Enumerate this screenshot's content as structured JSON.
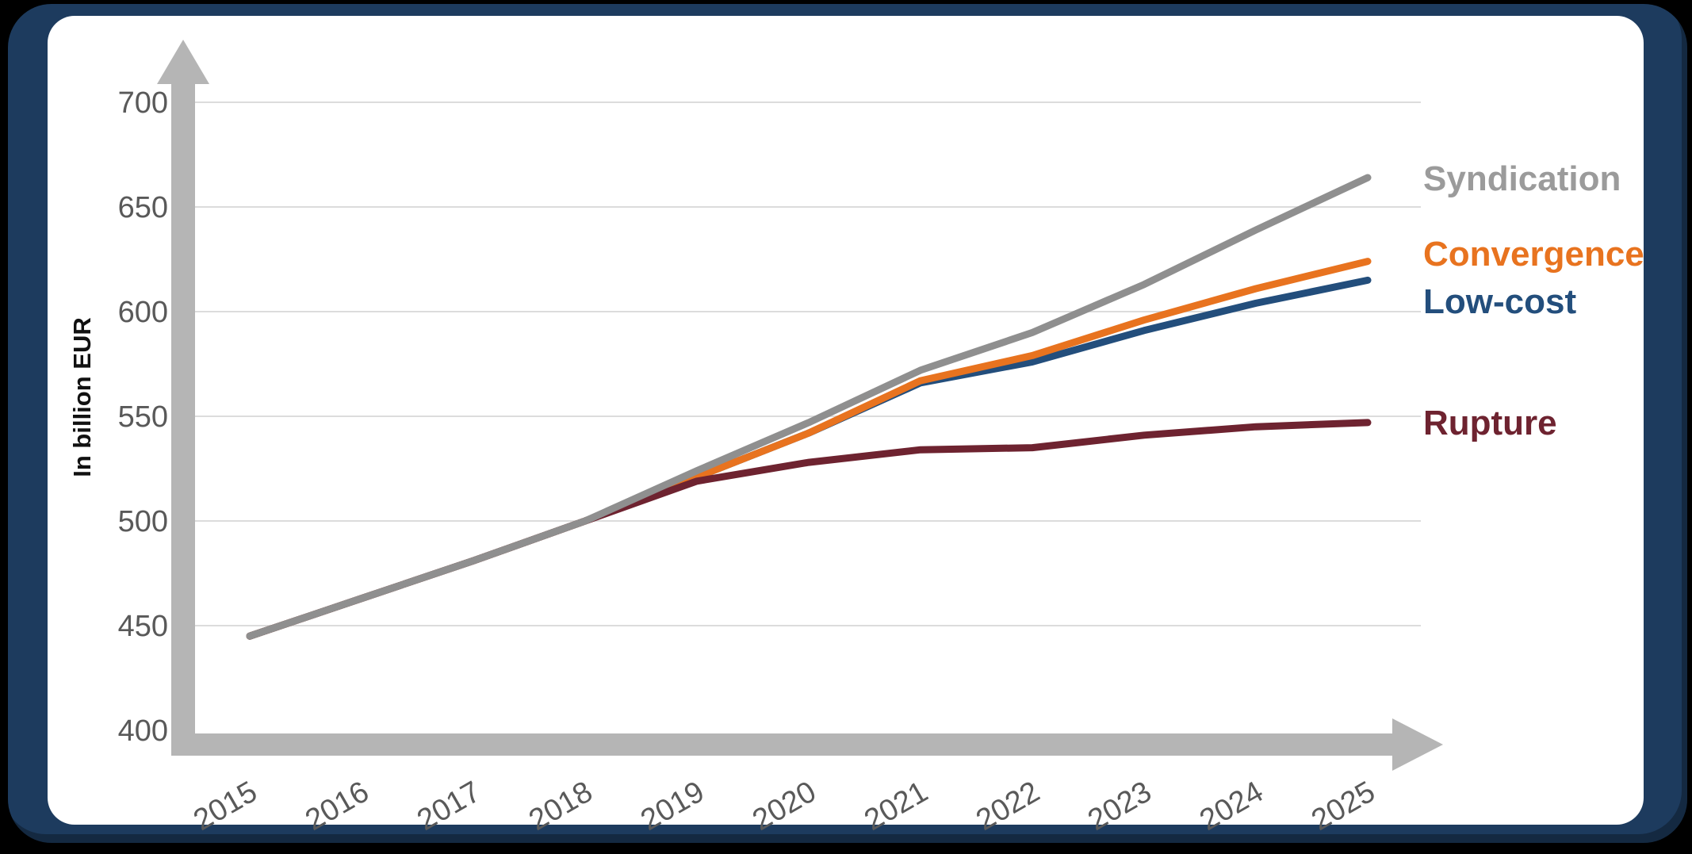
{
  "colors": {
    "background": "#000000",
    "frame": "#1d3b5e",
    "card": "#ffffff",
    "axis": "#b5b5b5",
    "grid": "#dcdcdc",
    "tick_text": "#595959"
  },
  "chart_data": {
    "type": "line",
    "title": "",
    "ylabel": "In billion EUR",
    "xlabel": "",
    "x": [
      2015,
      2016,
      2017,
      2018,
      2019,
      2020,
      2021,
      2022,
      2023,
      2024,
      2025
    ],
    "ylim": [
      400,
      700
    ],
    "yticks": [
      400,
      450,
      500,
      550,
      600,
      650,
      700
    ],
    "grid": "horizontal",
    "legend_position": "right",
    "series": [
      {
        "name": "Syndication",
        "color": "#9b9b9b",
        "line_color": "#8f8f8f",
        "values": [
          445,
          463,
          481,
          500,
          524,
          547,
          572,
          590,
          613,
          639,
          664
        ]
      },
      {
        "name": "Convergence",
        "color": "#e8731f",
        "line_color": "#e8731f",
        "values": [
          445,
          463,
          481,
          500,
          521,
          542,
          567,
          579,
          596,
          611,
          624
        ]
      },
      {
        "name": "Low-cost",
        "color": "#234e7c",
        "line_color": "#234e7c",
        "values": [
          445,
          463,
          481,
          500,
          521,
          542,
          566,
          576,
          591,
          604,
          615
        ]
      },
      {
        "name": "Rupture",
        "color": "#6e2330",
        "line_color": "#6e2330",
        "values": [
          445,
          463,
          481,
          500,
          519,
          528,
          534,
          535,
          541,
          545,
          547
        ]
      }
    ]
  }
}
